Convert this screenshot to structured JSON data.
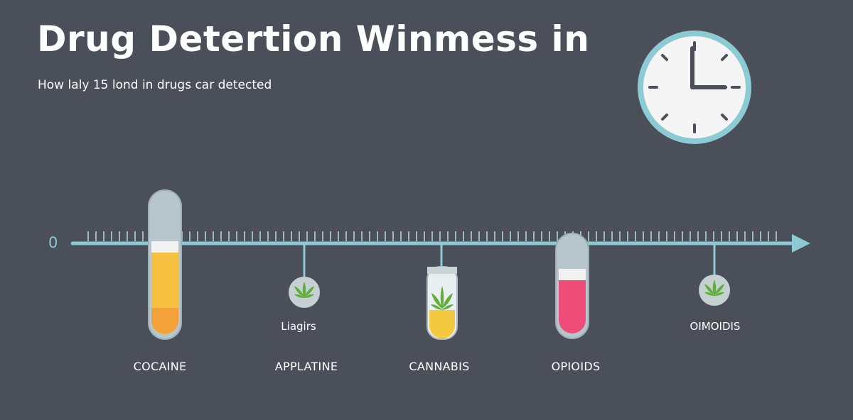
{
  "header": {
    "title": "Drug Detertion Winmess in",
    "subtitle": "How laly 15 lond in drugs car detected"
  },
  "axis": {
    "origin_label": "0"
  },
  "colors": {
    "background": "#4a4f59",
    "axis": "#8ccad4",
    "cocaine_liquid": "#f6c040",
    "cannabis_liquid": "#f3c93f",
    "opioids_liquid": "#ee4d7a",
    "leaf": "#5fae3a"
  },
  "icons": {
    "clock": "clock-icon",
    "leaf": "cannabis-leaf-icon",
    "tube": "test-tube-icon"
  },
  "drugs": [
    {
      "label": "COCAINE"
    },
    {
      "label": "APPLATINE"
    },
    {
      "label": "CANNABIS"
    },
    {
      "label": "OPIOIDS"
    }
  ],
  "markers": [
    {
      "label": "Liagirs"
    },
    {
      "label": "OIMOIDIS"
    }
  ]
}
